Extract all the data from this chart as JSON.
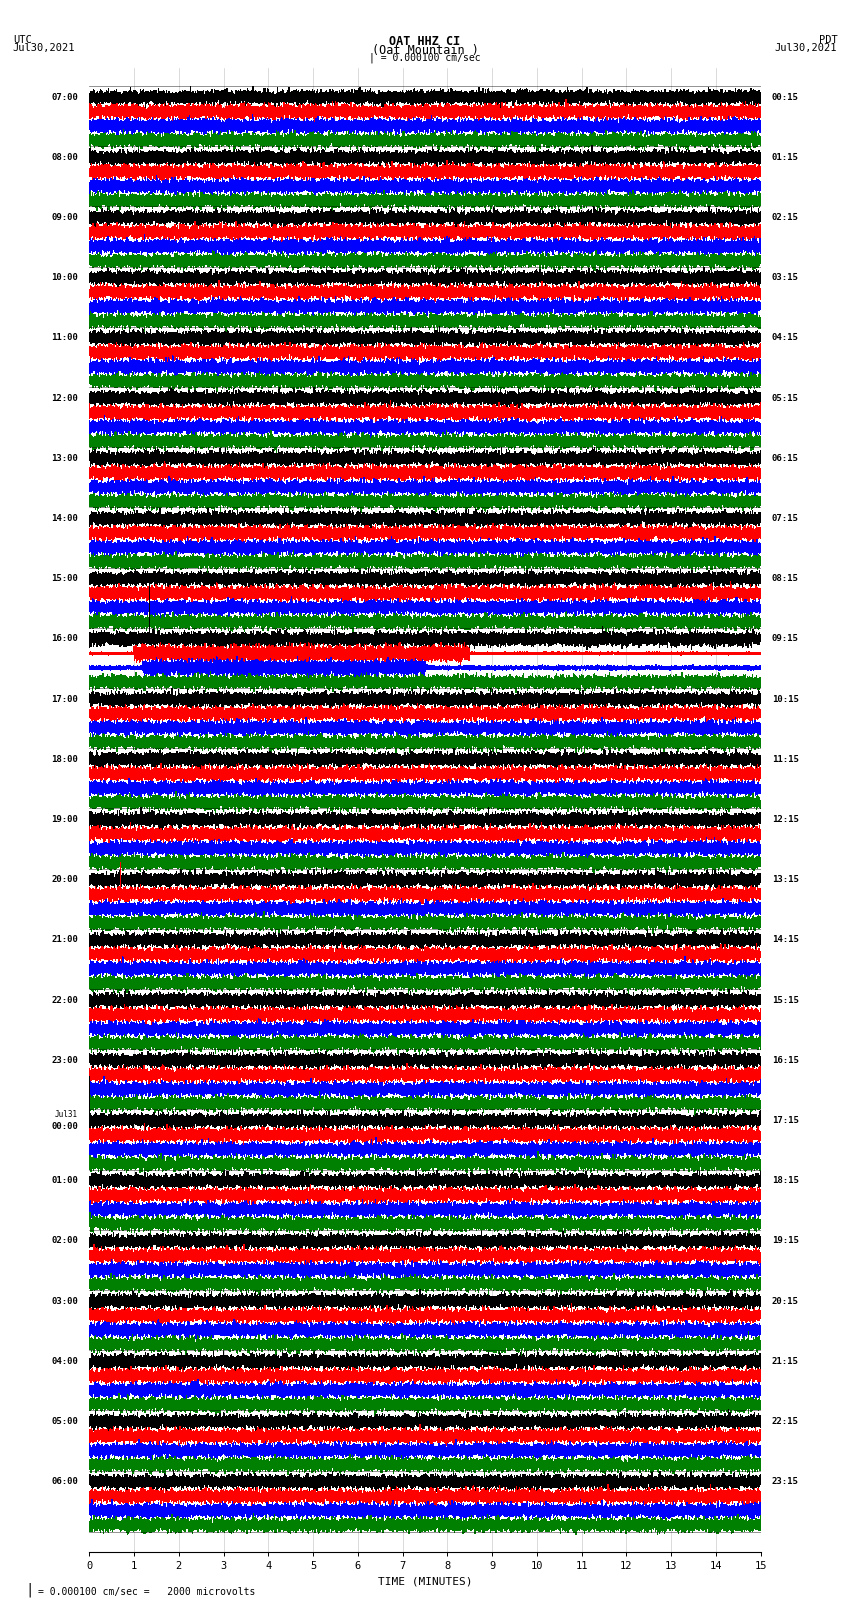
{
  "title_line1": "OAT HHZ CI",
  "title_line2": "(Oat Mountain )",
  "title_line3": "| = 0.000100 cm/sec",
  "label_left_top": "UTC",
  "label_left_date": "Jul30,2021",
  "label_right_top": "PDT",
  "label_right_date": "Jul30,2021",
  "xlabel": "TIME (MINUTES)",
  "footer_scale": "= 0.000100 cm/sec =   2000 microvolts",
  "footer_bar": "|",
  "colors": [
    "black",
    "red",
    "blue",
    "green"
  ],
  "utc_times": [
    "07:00",
    "08:00",
    "09:00",
    "10:00",
    "11:00",
    "12:00",
    "13:00",
    "14:00",
    "15:00",
    "16:00",
    "17:00",
    "18:00",
    "19:00",
    "20:00",
    "21:00",
    "22:00",
    "23:00",
    "Jul31\n00:00",
    "01:00",
    "02:00",
    "03:00",
    "04:00",
    "05:00",
    "06:00"
  ],
  "pdt_times": [
    "00:15",
    "01:15",
    "02:15",
    "03:15",
    "04:15",
    "05:15",
    "06:15",
    "07:15",
    "08:15",
    "09:15",
    "10:15",
    "11:15",
    "12:15",
    "13:15",
    "14:15",
    "15:15",
    "16:15",
    "17:15",
    "18:15",
    "19:15",
    "20:15",
    "21:15",
    "22:15",
    "23:15"
  ],
  "n_rows": 24,
  "n_channels": 4,
  "duration_minutes": 15,
  "sample_rate": 40,
  "bg_color": "white",
  "event_row_big": 9,
  "event_row_spike": 13
}
